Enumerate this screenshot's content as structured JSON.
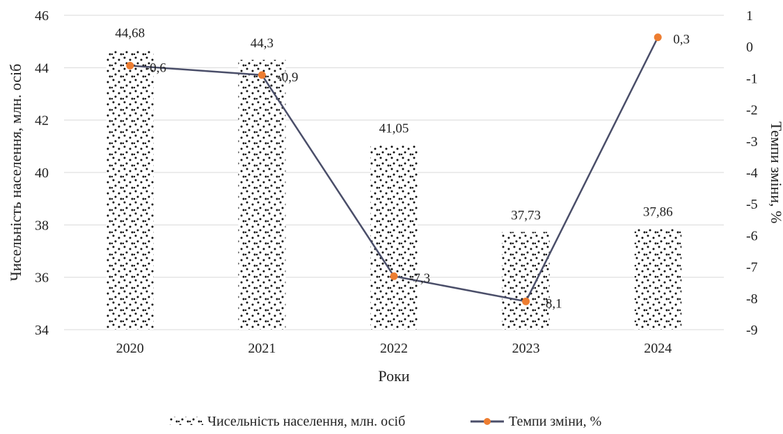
{
  "chart_data": {
    "type": "bar",
    "categories": [
      "2020",
      "2021",
      "2022",
      "2023",
      "2024"
    ],
    "series": [
      {
        "name": "Чисельність населення, млн. осіб",
        "type": "bar",
        "axis": "left",
        "values": [
          44.68,
          44.3,
          41.05,
          37.73,
          37.86
        ],
        "labels": [
          "44,68",
          "44,3",
          "41,05",
          "37,73",
          "37,86"
        ]
      },
      {
        "name": "Темпи зміни, %",
        "type": "line",
        "axis": "right",
        "values": [
          -0.6,
          -0.9,
          -7.3,
          -8.1,
          0.3
        ],
        "labels": [
          "-0,6",
          "-0,9",
          "-7,3",
          "-8,1",
          "0,3"
        ],
        "line_color": "#4a4e69",
        "marker_color": "#ed7d31"
      }
    ],
    "xlabel": "Роки",
    "ylabel": "Чисельність населення, млн. осіб",
    "y2label": "Темпи зміни, %",
    "ylim": [
      34,
      46
    ],
    "y2lim": [
      -9,
      1
    ],
    "yticks": [
      "34",
      "36",
      "38",
      "40",
      "42",
      "44",
      "46"
    ],
    "y2ticks": [
      "1",
      "0",
      "-1",
      "-2",
      "-3",
      "-4",
      "-5",
      "-6",
      "-7",
      "-8",
      "-9"
    ],
    "grid": true,
    "legend_position": "bottom"
  }
}
